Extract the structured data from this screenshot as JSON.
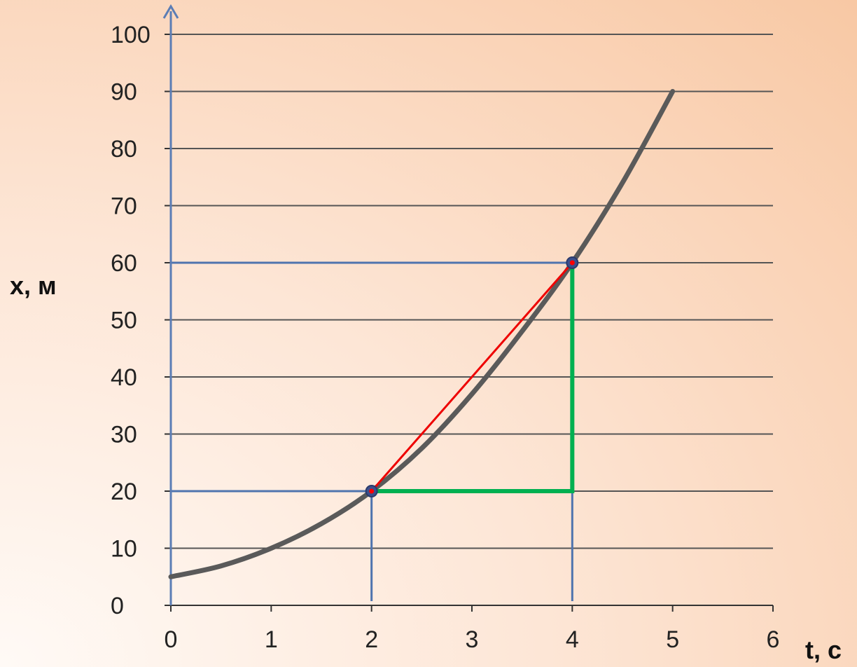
{
  "chart_data": {
    "type": "line",
    "xlabel": "t, c",
    "ylabel": "x, м",
    "xlim": [
      0,
      6
    ],
    "ylim": [
      0,
      100
    ],
    "x_ticks": [
      0,
      1,
      2,
      3,
      4,
      5,
      6
    ],
    "y_ticks": [
      0,
      10,
      20,
      30,
      40,
      50,
      60,
      70,
      80,
      90,
      100
    ],
    "grid": "horizontal",
    "series": [
      {
        "color": "#5a5a5a",
        "x": [
          0,
          0.5,
          1,
          1.5,
          2,
          2.5,
          3,
          3.5,
          4,
          4.5,
          5
        ],
        "y": [
          5,
          6.9,
          10,
          14.3,
          20,
          27.5,
          37,
          48,
          60,
          74,
          90
        ]
      }
    ],
    "points": [
      {
        "x": 2,
        "y": 20
      },
      {
        "x": 4,
        "y": 60
      }
    ],
    "secant": {
      "x1": 2,
      "y1": 20,
      "x2": 4,
      "y2": 60,
      "color": "#ee0000"
    },
    "triangle": {
      "x1": 2,
      "y1": 20,
      "x2": 4,
      "y2": 60,
      "color": "#00b050"
    },
    "guides": {
      "color": "#4f74ae",
      "points": [
        {
          "x": 2,
          "y": 20
        },
        {
          "x": 4,
          "y": 60
        }
      ]
    },
    "axis_color": "#5b7db5",
    "grid_color": "#555555"
  }
}
